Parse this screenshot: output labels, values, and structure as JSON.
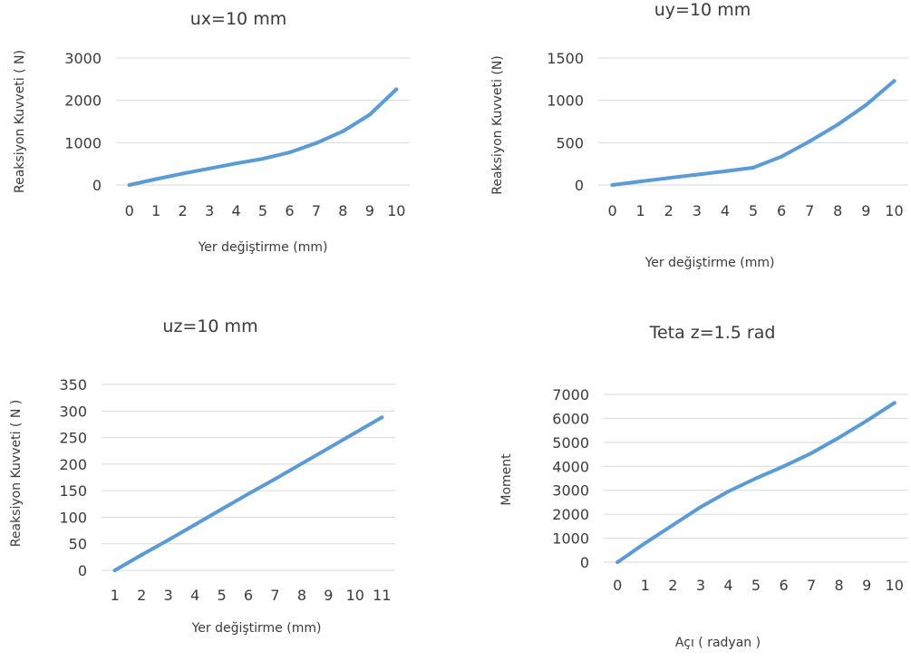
{
  "chart_data": [
    {
      "type": "line",
      "title": "ux=10 mm",
      "xlabel": "Yer değiştirme (mm)",
      "ylabel": "Reaksiyon Kuvveti ( N)",
      "categories": [
        "0",
        "1",
        "2",
        "3",
        "4",
        "5",
        "6",
        "7",
        "8",
        "9",
        "10"
      ],
      "series": [
        {
          "values": [
            0,
            140,
            270,
            390,
            510,
            620,
            770,
            990,
            1270,
            1660,
            2260
          ]
        }
      ],
      "ylim": [
        0,
        3000
      ],
      "yticks": [
        0,
        1000,
        2000,
        3000
      ],
      "grid": true,
      "color": "#5b9bd5"
    },
    {
      "type": "line",
      "title": "uy=10 mm",
      "xlabel": "Yer değiştirme (mm)",
      "ylabel": "Reaksiyon Kuvveti (N)",
      "categories": [
        "0",
        "1",
        "2",
        "3",
        "4",
        "5",
        "6",
        "7",
        "8",
        "9",
        "10"
      ],
      "series": [
        {
          "values": [
            0,
            42,
            82,
            122,
            162,
            205,
            335,
            515,
            715,
            945,
            1230
          ]
        }
      ],
      "ylim": [
        0,
        1500
      ],
      "yticks": [
        0,
        500,
        1000,
        1500
      ],
      "grid": true,
      "color": "#5b9bd5"
    },
    {
      "type": "line",
      "title": "uz=10 mm",
      "xlabel": "Yer değiştirme (mm)",
      "ylabel": "Reaksiyon Kuvveti ( N )",
      "categories": [
        "1",
        "2",
        "3",
        "4",
        "5",
        "6",
        "7",
        "8",
        "9",
        "10",
        "11"
      ],
      "series": [
        {
          "values": [
            0,
            29,
            57,
            86,
            115,
            144,
            172,
            201,
            230,
            259,
            288
          ]
        }
      ],
      "ylim": [
        0,
        350
      ],
      "yticks": [
        0,
        50,
        100,
        150,
        200,
        250,
        300,
        350
      ],
      "grid": true,
      "color": "#5b9bd5"
    },
    {
      "type": "line",
      "title": "Teta z=1.5 rad",
      "xlabel": "Açı ( radyan )",
      "ylabel": "Moment",
      "categories": [
        "0",
        "1",
        "2",
        "3",
        "4",
        "5",
        "6",
        "7",
        "8",
        "9",
        "10"
      ],
      "series": [
        {
          "values": [
            0,
            800,
            1550,
            2300,
            2950,
            3500,
            4000,
            4550,
            5200,
            5900,
            6650
          ]
        }
      ],
      "ylim": [
        0,
        7000
      ],
      "yticks": [
        0,
        1000,
        2000,
        3000,
        4000,
        5000,
        6000,
        7000
      ],
      "grid": true,
      "color": "#5b9bd5"
    }
  ]
}
